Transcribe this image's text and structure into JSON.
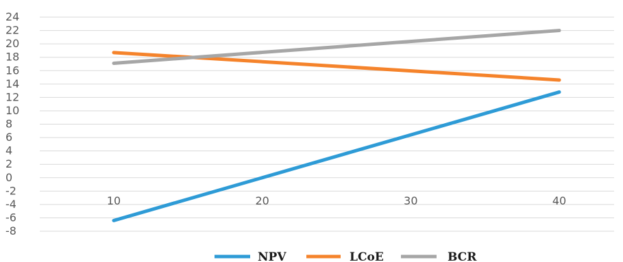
{
  "chart_data": {
    "type": "line",
    "title": "",
    "xlabel": "",
    "ylabel": "",
    "x": [
      10,
      40
    ],
    "x_tick_labels": [
      "10",
      "20",
      "30",
      "40"
    ],
    "x_tick_values": [
      10,
      20,
      30,
      40
    ],
    "ylim": [
      -8,
      24
    ],
    "y_tick_labels": [
      "24",
      "22",
      "20",
      "18",
      "16",
      "14",
      "12",
      "10",
      "8",
      "6",
      "4",
      "2",
      "0",
      "-2",
      "-4",
      "-6",
      "-8"
    ],
    "y_tick_values": [
      24,
      22,
      20,
      18,
      16,
      14,
      12,
      10,
      8,
      6,
      4,
      2,
      0,
      -2,
      -4,
      -6,
      -8
    ],
    "grid": true,
    "legend_position": "bottom",
    "series": [
      {
        "name": "NPV",
        "color": "#2e9bd6",
        "values": [
          -6.4,
          12.8
        ]
      },
      {
        "name": "LCoE",
        "color": "#f5832b",
        "values": [
          18.7,
          14.6
        ]
      },
      {
        "name": "BCR",
        "color": "#a6a6a6",
        "values": [
          17.1,
          22.0
        ]
      }
    ]
  }
}
